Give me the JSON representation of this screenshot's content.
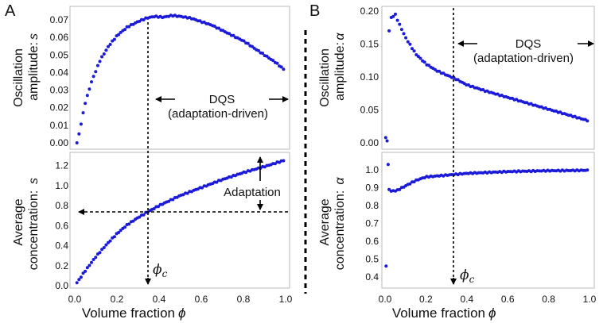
{
  "panels": {
    "A": {
      "letter": "A"
    },
    "B": {
      "letter": "B"
    }
  },
  "annotations": {
    "dqs": "DQS",
    "adaptation_driven": "(adaptation-driven)",
    "adaptation": "Adaptation",
    "phi_c": "ϕ",
    "phi_c_sub": "c"
  },
  "chart_data": [
    {
      "panel": "A-top",
      "type": "scatter",
      "ylabel_line1": "Oscillation",
      "ylabel_line2": "amplitude:",
      "ylabel_symbol": "s",
      "xlim": [
        0,
        1
      ],
      "ylim": [
        0,
        0.075
      ],
      "yticks": [
        "0.00",
        "0.01",
        "0.02",
        "0.03",
        "0.04",
        "0.05",
        "0.06",
        "0.07"
      ],
      "xticks": [],
      "phi_c": 0.34,
      "series": [
        {
          "name": "amplitude s",
          "color": "#1a1ad8",
          "x_start": 0.01,
          "x_end": 0.99,
          "n": 100,
          "keypoints": [
            [
              0.0,
              0.0
            ],
            [
              0.01,
              0.0
            ],
            [
              0.02,
              0.005
            ],
            [
              0.03,
              0.011
            ],
            [
              0.05,
              0.023
            ],
            [
              0.08,
              0.035
            ],
            [
              0.12,
              0.047
            ],
            [
              0.16,
              0.055
            ],
            [
              0.2,
              0.061
            ],
            [
              0.25,
              0.066
            ],
            [
              0.3,
              0.069
            ],
            [
              0.34,
              0.071
            ],
            [
              0.38,
              0.072
            ],
            [
              0.42,
              0.0715
            ],
            [
              0.46,
              0.0725
            ],
            [
              0.5,
              0.072
            ],
            [
              0.55,
              0.071
            ],
            [
              0.6,
              0.069
            ],
            [
              0.65,
              0.067
            ],
            [
              0.7,
              0.064
            ],
            [
              0.75,
              0.061
            ],
            [
              0.8,
              0.058
            ],
            [
              0.85,
              0.054
            ],
            [
              0.9,
              0.05
            ],
            [
              0.95,
              0.046
            ],
            [
              0.99,
              0.042
            ]
          ]
        }
      ]
    },
    {
      "panel": "A-bottom",
      "type": "scatter",
      "ylabel_line1": "Average",
      "ylabel_line2": "concentration:",
      "ylabel_symbol": "s",
      "xlabel": "Volume fraction",
      "xlabel_symbol": "ϕ",
      "xlim": [
        0,
        1
      ],
      "ylim": [
        0,
        1.3
      ],
      "yticks": [
        "0.0",
        "0.2",
        "0.4",
        "0.6",
        "0.8",
        "1.0",
        "1.2"
      ],
      "xticks": [
        "0.0",
        "0.2",
        "0.4",
        "0.6",
        "0.8",
        "1.0"
      ],
      "phi_c": 0.34,
      "hline": 0.73,
      "series": [
        {
          "name": "average s",
          "color": "#1a1ad8",
          "x_start": 0.01,
          "x_end": 0.99,
          "n": 100,
          "keypoints": [
            [
              0.0,
              0.0
            ],
            [
              0.05,
              0.15
            ],
            [
              0.1,
              0.29
            ],
            [
              0.15,
              0.41
            ],
            [
              0.2,
              0.52
            ],
            [
              0.25,
              0.61
            ],
            [
              0.3,
              0.68
            ],
            [
              0.34,
              0.73
            ],
            [
              0.4,
              0.8
            ],
            [
              0.5,
              0.9
            ],
            [
              0.6,
              0.98
            ],
            [
              0.7,
              1.06
            ],
            [
              0.8,
              1.13
            ],
            [
              0.9,
              1.19
            ],
            [
              0.99,
              1.25
            ]
          ]
        }
      ]
    },
    {
      "panel": "B-top",
      "type": "scatter",
      "ylabel_line1": "Oscillation",
      "ylabel_line2": "amplitude:",
      "ylabel_symbol": "α",
      "xlim": [
        0,
        1
      ],
      "ylim": [
        0,
        0.2
      ],
      "yticks": [
        "0.00",
        "0.05",
        "0.10",
        "0.15",
        "0.20"
      ],
      "xticks": [],
      "phi_c": 0.34,
      "series": [
        {
          "name": "amplitude alpha",
          "color": "#1a1ad8",
          "x_start": 0.02,
          "x_end": 0.99,
          "n": 96,
          "keypoints": [
            [
              0.02,
              0.17
            ],
            [
              0.03,
              0.19
            ],
            [
              0.05,
              0.195
            ],
            [
              0.07,
              0.18
            ],
            [
              0.1,
              0.16
            ],
            [
              0.15,
              0.135
            ],
            [
              0.2,
              0.12
            ],
            [
              0.25,
              0.11
            ],
            [
              0.3,
              0.103
            ],
            [
              0.34,
              0.098
            ],
            [
              0.4,
              0.088
            ],
            [
              0.5,
              0.078
            ],
            [
              0.6,
              0.069
            ],
            [
              0.7,
              0.06
            ],
            [
              0.8,
              0.051
            ],
            [
              0.9,
              0.042
            ],
            [
              0.99,
              0.034
            ]
          ],
          "extra_points": [
            [
              0.003,
              0.008
            ],
            [
              0.01,
              0.003
            ]
          ]
        }
      ]
    },
    {
      "panel": "B-bottom",
      "type": "scatter",
      "ylabel_line1": "Average",
      "ylabel_line2": "concentration:",
      "ylabel_symbol": "α",
      "xlabel": "Volume fraction",
      "xlabel_symbol": "ϕ",
      "xlim": [
        0,
        1
      ],
      "ylim": [
        0.35,
        1.08
      ],
      "yticks": [
        "0.4",
        "0.5",
        "0.6",
        "0.7",
        "0.8",
        "0.9",
        "1.0"
      ],
      "xticks": [
        "0.0",
        "0.2",
        "0.4",
        "0.6",
        "0.8",
        "1.0"
      ],
      "phi_c": 0.34,
      "series": [
        {
          "name": "average alpha",
          "color": "#1a1ad8",
          "x_start": 0.03,
          "x_end": 0.99,
          "n": 95,
          "keypoints": [
            [
              0.03,
              0.88
            ],
            [
              0.06,
              0.885
            ],
            [
              0.1,
              0.91
            ],
            [
              0.15,
              0.94
            ],
            [
              0.2,
              0.96
            ],
            [
              0.3,
              0.97
            ],
            [
              0.4,
              0.98
            ],
            [
              0.6,
              0.99
            ],
            [
              0.8,
              0.995
            ],
            [
              0.99,
              0.997
            ]
          ],
          "extra_points": [
            [
              0.005,
              0.46
            ],
            [
              0.015,
              1.03
            ],
            [
              0.02,
              0.89
            ]
          ]
        }
      ]
    }
  ]
}
